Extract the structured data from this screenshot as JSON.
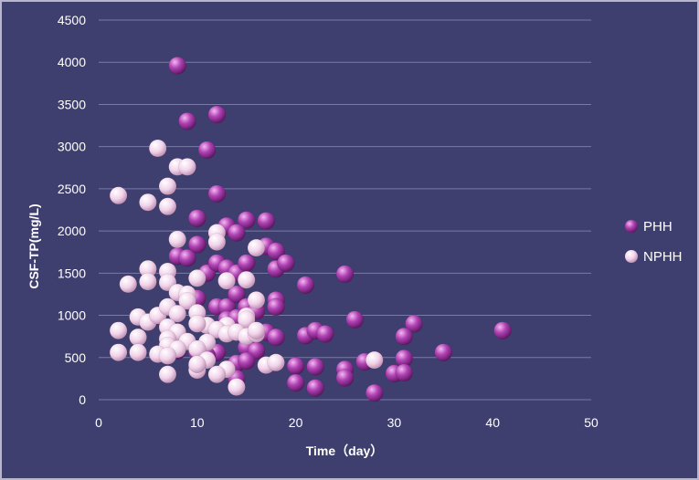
{
  "colors": {
    "background": "#3f3f6f",
    "border": "#b7b7c9",
    "grid": "#7a7aa6",
    "phh": "#9a2f9f",
    "nphh": "#efcfe6"
  },
  "chart_data": {
    "type": "scatter",
    "title": "",
    "xlabel": "Time（day）",
    "ylabel": "CSF-TP(mg/L)",
    "xlim": [
      0,
      50
    ],
    "ylim": [
      0,
      4500
    ],
    "x_ticks": [
      "0",
      "10",
      "20",
      "30",
      "40",
      "50"
    ],
    "y_ticks": [
      "0",
      "500",
      "1000",
      "1500",
      "2000",
      "2500",
      "3000",
      "3500",
      "4000",
      "4500"
    ],
    "grid": "horizontal",
    "legend_position": "right",
    "series": [
      {
        "name": "PHH",
        "color": "#9a2f9f",
        "points": [
          [
            8,
            3960
          ],
          [
            9,
            3300
          ],
          [
            12,
            3380
          ],
          [
            11,
            2960
          ],
          [
            12,
            2440
          ],
          [
            10,
            2150
          ],
          [
            13,
            2060
          ],
          [
            15,
            2130
          ],
          [
            17,
            2120
          ],
          [
            14,
            1980
          ],
          [
            8,
            1700
          ],
          [
            9,
            1680
          ],
          [
            10,
            1840
          ],
          [
            11,
            1500
          ],
          [
            12,
            1620
          ],
          [
            13,
            1560
          ],
          [
            14,
            1500
          ],
          [
            15,
            1620
          ],
          [
            17,
            1820
          ],
          [
            18,
            1760
          ],
          [
            18,
            1550
          ],
          [
            19,
            1620
          ],
          [
            21,
            1360
          ],
          [
            25,
            1490
          ],
          [
            10,
            1200
          ],
          [
            12,
            1100
          ],
          [
            13,
            1100
          ],
          [
            14,
            1250
          ],
          [
            15,
            1100
          ],
          [
            16,
            1050
          ],
          [
            18,
            1180
          ],
          [
            18,
            1100
          ],
          [
            13,
            950
          ],
          [
            14,
            970
          ],
          [
            15,
            980
          ],
          [
            26,
            950
          ],
          [
            32,
            900
          ],
          [
            41,
            820
          ],
          [
            17,
            800
          ],
          [
            18,
            740
          ],
          [
            21,
            760
          ],
          [
            22,
            820
          ],
          [
            23,
            780
          ],
          [
            31,
            750
          ],
          [
            15,
            620
          ],
          [
            16,
            580
          ],
          [
            12,
            560
          ],
          [
            10,
            560
          ],
          [
            8,
            580
          ],
          [
            11,
            520
          ],
          [
            14,
            430
          ],
          [
            15,
            460
          ],
          [
            20,
            400
          ],
          [
            22,
            390
          ],
          [
            25,
            360
          ],
          [
            27,
            450
          ],
          [
            31,
            490
          ],
          [
            35,
            560
          ],
          [
            14,
            250
          ],
          [
            20,
            200
          ],
          [
            22,
            140
          ],
          [
            25,
            260
          ],
          [
            28,
            80
          ],
          [
            30,
            310
          ],
          [
            31,
            320
          ]
        ]
      },
      {
        "name": "NPHH",
        "color": "#efcfe6",
        "points": [
          [
            2,
            2420
          ],
          [
            5,
            2340
          ],
          [
            6,
            2980
          ],
          [
            7,
            2530
          ],
          [
            7,
            2290
          ],
          [
            8,
            2760
          ],
          [
            9,
            2760
          ],
          [
            8,
            1900
          ],
          [
            12,
            1980
          ],
          [
            12,
            1870
          ],
          [
            16,
            1800
          ],
          [
            5,
            1550
          ],
          [
            5,
            1400
          ],
          [
            7,
            1520
          ],
          [
            7,
            1390
          ],
          [
            10,
            1440
          ],
          [
            13,
            1410
          ],
          [
            15,
            1420
          ],
          [
            3,
            1370
          ],
          [
            8,
            1270
          ],
          [
            9,
            1250
          ],
          [
            9,
            1170
          ],
          [
            16,
            1180
          ],
          [
            4,
            980
          ],
          [
            5,
            920
          ],
          [
            6,
            1000
          ],
          [
            7,
            1100
          ],
          [
            8,
            1020
          ],
          [
            10,
            1030
          ],
          [
            11,
            880
          ],
          [
            13,
            880
          ],
          [
            15,
            990
          ],
          [
            15,
            950
          ],
          [
            7,
            860
          ],
          [
            8,
            800
          ],
          [
            10,
            900
          ],
          [
            12,
            830
          ],
          [
            13,
            780
          ],
          [
            14,
            800
          ],
          [
            15,
            750
          ],
          [
            16,
            780
          ],
          [
            16,
            820
          ],
          [
            2,
            820
          ],
          [
            4,
            740
          ],
          [
            7,
            720
          ],
          [
            9,
            690
          ],
          [
            11,
            680
          ],
          [
            7,
            640
          ],
          [
            8,
            600
          ],
          [
            2,
            560
          ],
          [
            4,
            560
          ],
          [
            6,
            540
          ],
          [
            7,
            520
          ],
          [
            10,
            600
          ],
          [
            11,
            470
          ],
          [
            10,
            400
          ],
          [
            17,
            410
          ],
          [
            18,
            440
          ],
          [
            28,
            470
          ],
          [
            10,
            350
          ],
          [
            13,
            360
          ],
          [
            7,
            300
          ],
          [
            12,
            300
          ],
          [
            14,
            150
          ],
          [
            10,
            420
          ]
        ]
      }
    ]
  }
}
